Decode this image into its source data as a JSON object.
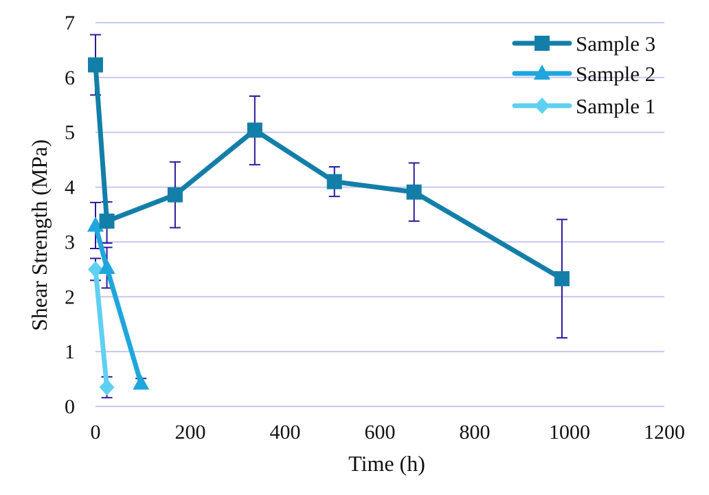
{
  "chart_data": {
    "type": "line",
    "title": "",
    "xlabel": "Time (h)",
    "ylabel": "Shear Strength (MPa)",
    "xlim": [
      0,
      1200
    ],
    "ylim": [
      0,
      7
    ],
    "x_ticks": [
      "0",
      "200",
      "400",
      "600",
      "800",
      "1000",
      "1200"
    ],
    "y_ticks": [
      "0",
      "1",
      "2",
      "3",
      "4",
      "5",
      "6",
      "7"
    ],
    "grid": "horizontal",
    "legend_position": "top-right",
    "colors": {
      "grid": "#c5c8ef",
      "error_bar": "#2a1a9a",
      "axis": "#c5c8ef"
    },
    "series": [
      {
        "name": "Sample 3",
        "marker": "square",
        "color": "#137fa8",
        "x": [
          0,
          24,
          168,
          336,
          504,
          672,
          984
        ],
        "y": [
          6.23,
          3.38,
          3.86,
          5.04,
          4.1,
          3.91,
          2.33
        ],
        "err_low": [
          5.68,
          2.98,
          3.26,
          4.41,
          3.83,
          3.38,
          1.25
        ],
        "err_high": [
          6.78,
          3.73,
          4.46,
          5.66,
          4.37,
          4.44,
          3.41
        ]
      },
      {
        "name": "Sample 2",
        "marker": "triangle",
        "color": "#1fa6dd",
        "x": [
          0,
          24,
          96
        ],
        "y": [
          3.3,
          2.53,
          0.42
        ],
        "err_low": [
          2.88,
          2.16,
          0.33
        ],
        "err_high": [
          3.72,
          2.9,
          0.51
        ]
      },
      {
        "name": "Sample 1",
        "marker": "diamond",
        "color": "#5fd0f2",
        "x": [
          0,
          24
        ],
        "y": [
          2.5,
          0.35
        ],
        "err_low": [
          2.3,
          0.16
        ],
        "err_high": [
          2.7,
          0.54
        ]
      }
    ]
  }
}
